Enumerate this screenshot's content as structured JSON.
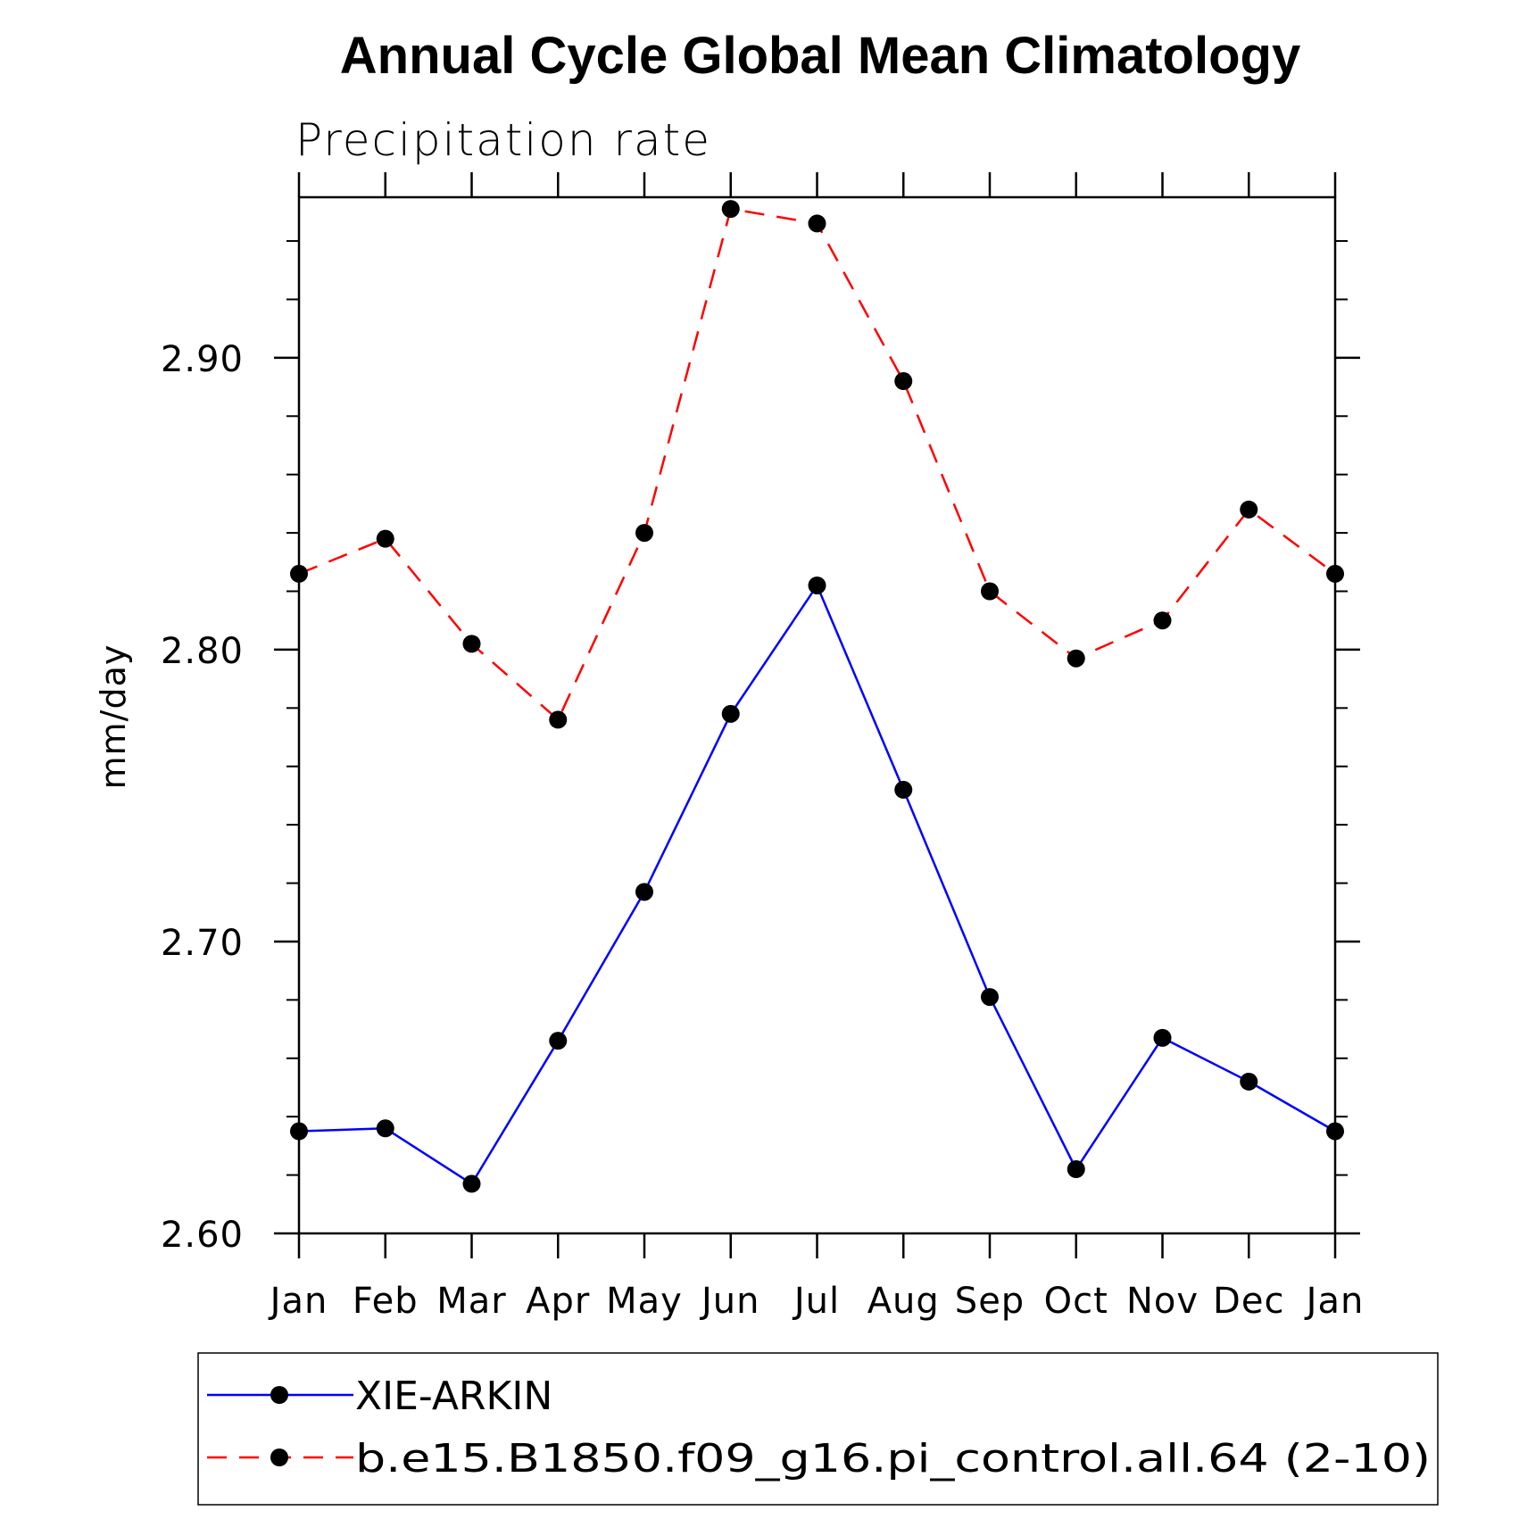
{
  "chart_data": {
    "type": "line",
    "title": "Annual Cycle Global Mean Climatology",
    "subtitle": "Precipitation rate",
    "ylabel": "mm/day",
    "xlabel": "",
    "categories": [
      "Jan",
      "Feb",
      "Mar",
      "Apr",
      "May",
      "Jun",
      "Jul",
      "Aug",
      "Sep",
      "Oct",
      "Nov",
      "Dec",
      "Jan"
    ],
    "ylim": [
      2.6,
      2.955
    ],
    "yticks": [
      2.6,
      2.7,
      2.8,
      2.9
    ],
    "ytick_labels": [
      "2.60",
      "2.70",
      "2.80",
      "2.90"
    ],
    "yminor_step": 0.02,
    "grid": false,
    "legend_position": "bottom",
    "series": [
      {
        "name": "XIE-ARKIN",
        "color": "#0000ff",
        "style": "solid",
        "marker": "filled-circle",
        "values": [
          2.635,
          2.636,
          2.617,
          2.666,
          2.717,
          2.778,
          2.822,
          2.752,
          2.681,
          2.622,
          2.667,
          2.652,
          2.635
        ]
      },
      {
        "name": "b.e15.B1850.f09_g16.pi_control.all.64 (2-10)",
        "color": "#ff0000",
        "style": "dashed",
        "marker": "filled-circle",
        "values": [
          2.826,
          2.838,
          2.802,
          2.776,
          2.84,
          2.951,
          2.946,
          2.892,
          2.82,
          2.797,
          2.81,
          2.848,
          2.826
        ]
      }
    ]
  }
}
